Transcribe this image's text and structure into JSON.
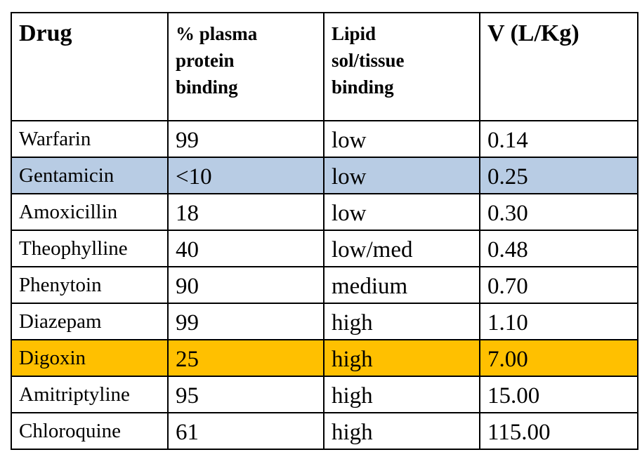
{
  "table": {
    "headers": {
      "drug": "Drug",
      "binding": [
        "% plasma",
        "protein",
        "binding"
      ],
      "lipid": [
        "Lipid",
        "sol/tissue",
        "binding"
      ],
      "volume": "V (L/Kg)"
    },
    "rows": [
      {
        "drug": "Warfarin",
        "binding": "99",
        "lipid": "low",
        "volume": "0.14",
        "highlight": "none"
      },
      {
        "drug": "Gentamicin",
        "binding": "<10",
        "lipid": "low",
        "volume": "0.25",
        "highlight": "blue"
      },
      {
        "drug": "Amoxicillin",
        "binding": "18",
        "lipid": "low",
        "volume": "0.30",
        "highlight": "none"
      },
      {
        "drug": "Theophylline",
        "binding": "40",
        "lipid": "low/med",
        "volume": "0.48",
        "highlight": "none"
      },
      {
        "drug": "Phenytoin",
        "binding": "90",
        "lipid": "medium",
        "volume": "0.70",
        "highlight": "none"
      },
      {
        "drug": "Diazepam",
        "binding": "99",
        "lipid": "high",
        "volume": "1.10",
        "highlight": "none"
      },
      {
        "drug": "Digoxin",
        "binding": "25",
        "lipid": "high",
        "volume": "7.00",
        "highlight": "orange"
      },
      {
        "drug": "Amitriptyline",
        "binding": "95",
        "lipid": "high",
        "volume": "15.00",
        "highlight": "none"
      },
      {
        "drug": "Chloroquine",
        "binding": "61",
        "lipid": "high",
        "volume": "115.00",
        "highlight": "none"
      }
    ]
  },
  "colors": {
    "highlight_blue": "#b8cce4",
    "highlight_orange": "#ffc000",
    "border": "#000000"
  }
}
